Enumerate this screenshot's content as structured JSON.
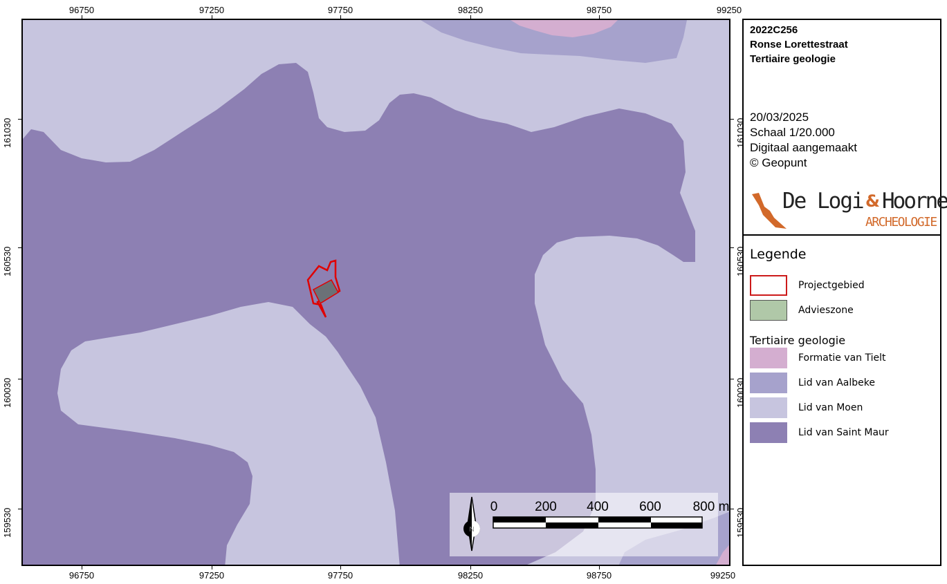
{
  "map": {
    "x_ticks": [
      "96750",
      "97250",
      "97750",
      "98250",
      "98750",
      "99250"
    ],
    "y_ticks": [
      "161030",
      "160530",
      "160030",
      "159530"
    ],
    "colors": {
      "formatie_van_tielt": "#d4aed0",
      "lid_van_aalbeke": "#a6a2cc",
      "lid_van_moen": "#c7c5df",
      "lid_van_saint_maur": "#8d80b3",
      "projectgebied_outline": "#e00000",
      "advieszone_fill": "#6b7177"
    }
  },
  "title": {
    "code": "2022C256",
    "site": "Ronse Lorettestraat",
    "subject": "Tertiaire geologie"
  },
  "info": {
    "date": "20/03/2025",
    "scale": "Schaal 1/20.000",
    "made": "Digitaal aangemaakt",
    "source": "© Geopunt"
  },
  "logo": {
    "name_part1": "De Logi",
    "ampersand": "&",
    "name_part2": "Hoorne",
    "sub": "ARCHEOLOGIE",
    "color_brand": "#d2692a",
    "color_text": "#222222"
  },
  "legend": {
    "title": "Legende",
    "items": [
      {
        "label": "Projectgebied",
        "fill": "#ffffff",
        "stroke": "#cc1a1a"
      },
      {
        "label": "Advieszone",
        "fill": "#b0c8a8",
        "stroke": "#555555"
      }
    ],
    "group_title": "Tertiaire geologie",
    "group_items": [
      {
        "label": "Formatie van Tielt",
        "fill": "#d4aed0"
      },
      {
        "label": "Lid van Aalbeke",
        "fill": "#a6a2cc"
      },
      {
        "label": "Lid van Moen",
        "fill": "#c7c5df"
      },
      {
        "label": "Lid van Saint Maur",
        "fill": "#8d80b3"
      }
    ]
  },
  "scalebar": {
    "labels": [
      "0",
      "200",
      "400",
      "600",
      "800 m"
    ],
    "north": "N"
  }
}
